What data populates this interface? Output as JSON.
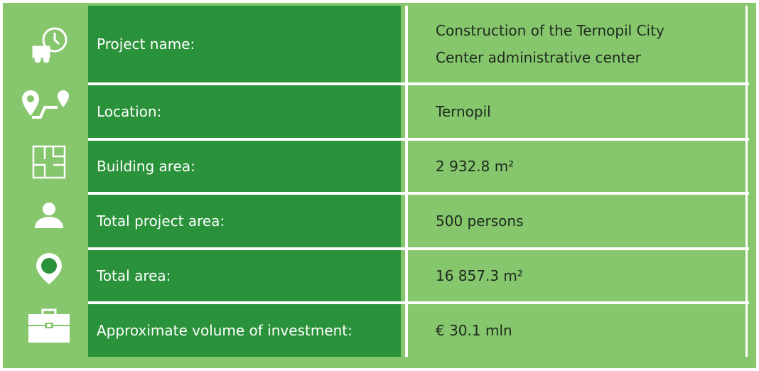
{
  "table": {
    "rows": [
      [
        "Project name:",
        "Construction of the Ternopil City Center administrative center"
      ],
      [
        "Location:",
        "Ternopil"
      ],
      [
        "Building area:",
        "2 932.8 m²"
      ],
      [
        "Total project area:",
        "500 persons"
      ],
      [
        "Total area:",
        "16 857.3 m²"
      ],
      [
        "Approximate volume of investment:",
        "€ 30.1 mln"
      ]
    ]
  }
}
